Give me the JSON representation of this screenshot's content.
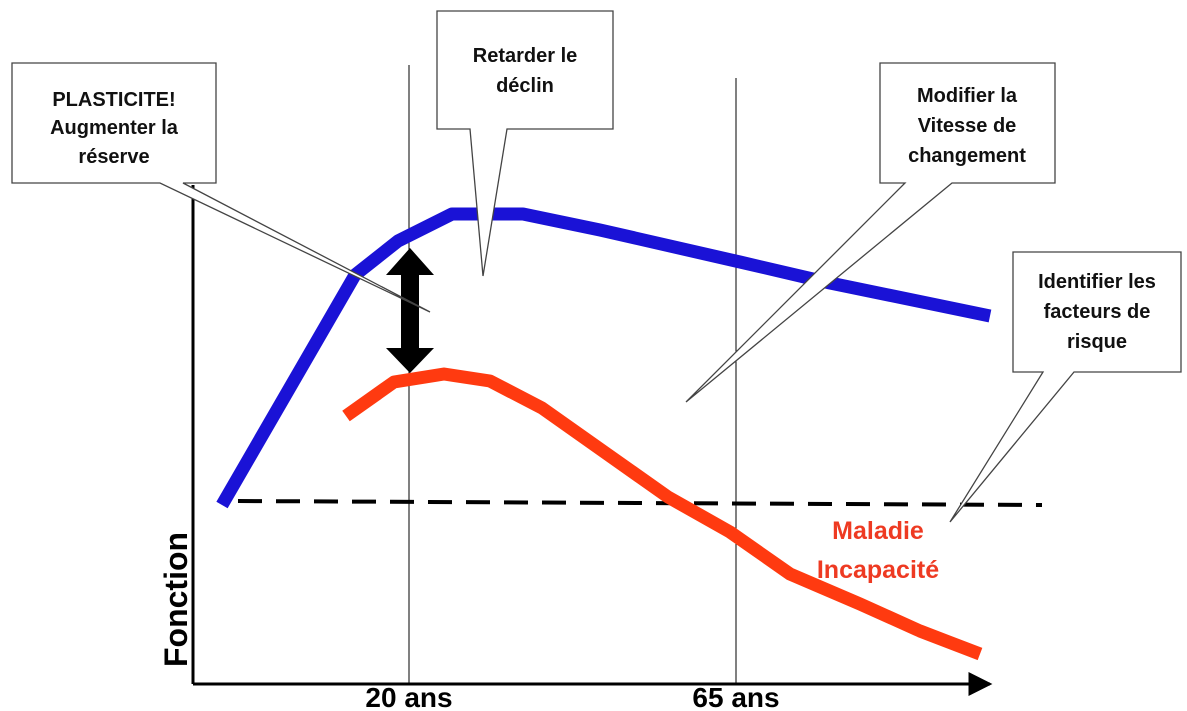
{
  "axes": {
    "ylabel": "Fonction",
    "ticks": [
      "20 ans",
      "65 ans"
    ]
  },
  "callouts": {
    "plasticite": [
      "PLASTICITE!",
      "Augmenter la",
      "réserve"
    ],
    "retarder": [
      "Retarder le",
      "déclin"
    ],
    "modifier": [
      "Modifier la",
      "Vitesse de",
      "changement"
    ],
    "identifier": [
      "Identifier les",
      "facteurs de",
      "risque"
    ]
  },
  "labels": {
    "maladie": [
      "Maladie",
      "Incapacité"
    ]
  },
  "colors": {
    "normal_curve": "#1a12d6",
    "disease_curve": "#ff3a10",
    "disease_label": "#ee3a22",
    "threshold": "#000000",
    "arrow": "#000000"
  }
}
